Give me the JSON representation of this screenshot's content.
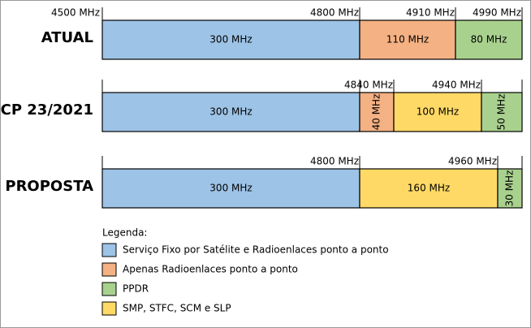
{
  "rows": [
    {
      "label": "ATUAL",
      "start_label": "4500 MHz",
      "segments": [
        {
          "text": "300 MHz",
          "end_label": "4800 MHz",
          "color": "#9dc3e6"
        },
        {
          "text": "110 MHz",
          "end_label": "4910 MHz",
          "color": "#f4b183"
        },
        {
          "text": "80 MHz",
          "end_label": "4990 MHz",
          "color": "#a9d18e"
        }
      ]
    },
    {
      "label": "CP 23/2021",
      "segments": [
        {
          "text": "300 MHz",
          "color": "#9dc3e6"
        },
        {
          "text": "40 MHz",
          "end_label": "4840 MHz",
          "color": "#f4b183"
        },
        {
          "text": "100 MHz",
          "end_label": "4940 MHz",
          "color": "#ffd966"
        },
        {
          "text": "50 MHz",
          "color": "#a9d18e"
        }
      ]
    },
    {
      "label": "PROPOSTA",
      "segments": [
        {
          "text": "300 MHz",
          "end_label": "4800 MHz",
          "color": "#9dc3e6"
        },
        {
          "text": "160 MHz",
          "end_label": "4960 MHz",
          "color": "#ffd966"
        },
        {
          "text": "30 MHz",
          "color": "#a9d18e"
        }
      ]
    }
  ],
  "legend": {
    "title": "Legenda:",
    "items": [
      {
        "text": "Serviço Fixo por Satélite e Radioenlaces ponto a ponto",
        "color": "#9dc3e6"
      },
      {
        "text": "Apenas Radioenlaces ponto a ponto",
        "color": "#f4b183"
      },
      {
        "text": "PPDR",
        "color": "#a9d18e"
      },
      {
        "text": "SMP, STFC, SCM e SLP",
        "color": "#ffd966"
      }
    ]
  }
}
